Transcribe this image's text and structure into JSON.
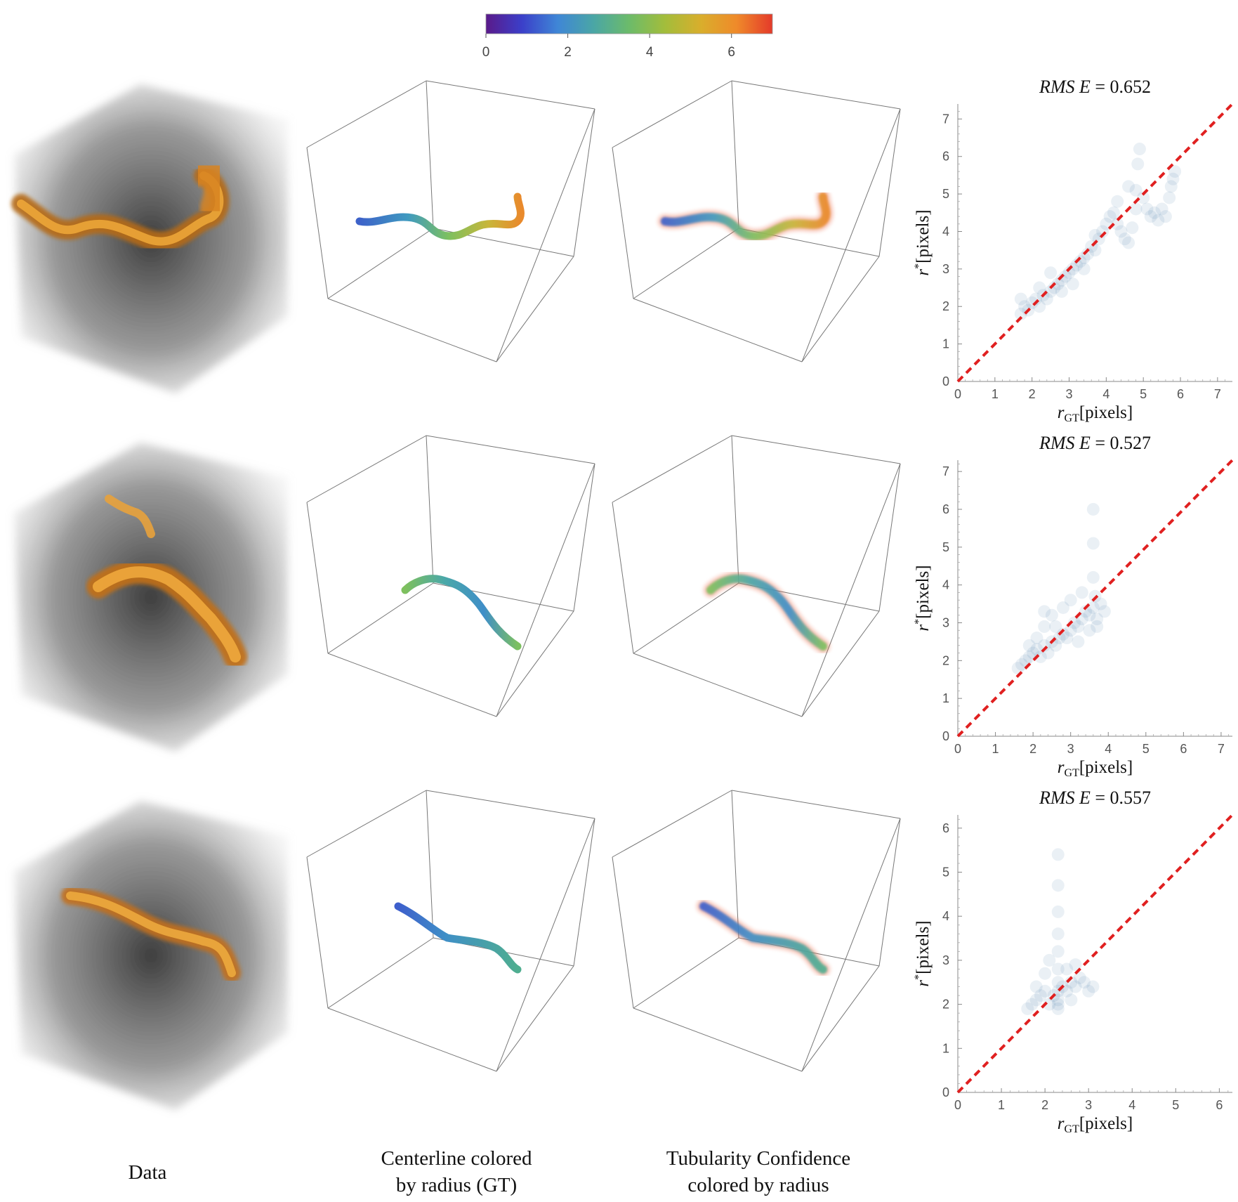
{
  "colorbar": {
    "ticks": [
      "0",
      "2",
      "4",
      "6"
    ],
    "tick_values": [
      0,
      2,
      4,
      6
    ],
    "min": 0,
    "max": 7,
    "colormap": [
      "#5a1a8a",
      "#3b3fc9",
      "#3f86d6",
      "#4aa6a6",
      "#6cbb6a",
      "#a3bd3b",
      "#d9ae2c",
      "#ef8a2a",
      "#e43a2a"
    ]
  },
  "captions": {
    "data": {
      "line1": "Data"
    },
    "centerline": {
      "line1": "Centerline colored",
      "line2": "by radius (GT)"
    },
    "tubularity": {
      "line1": "Tubularity Confidence",
      "line2": "colored by radius"
    }
  },
  "chart_data": [
    {
      "type": "scatter",
      "title_metric": "RMS E",
      "title_eq": "= 0.652",
      "xlabel_main": "r",
      "xlabel_sub": "GT",
      "xlabel_unit": "[pixels]",
      "ylabel_main": "r",
      "ylabel_sup": "*",
      "ylabel_unit": "[pixels]",
      "xlim": [
        0,
        7.4
      ],
      "ylim": [
        0,
        7.4
      ],
      "xticks": [
        0,
        1,
        2,
        3,
        4,
        5,
        6,
        7
      ],
      "yticks": [
        0,
        1,
        2,
        3,
        4,
        5,
        6,
        7
      ],
      "reference_line": "y = x",
      "point_color": "#4f86ab",
      "points": [
        [
          1.7,
          1.8
        ],
        [
          1.8,
          2.0
        ],
        [
          1.9,
          1.9
        ],
        [
          2.0,
          2.1
        ],
        [
          2.1,
          2.2
        ],
        [
          2.2,
          2.0
        ],
        [
          2.3,
          2.3
        ],
        [
          2.4,
          2.2
        ],
        [
          2.5,
          2.4
        ],
        [
          2.6,
          2.5
        ],
        [
          2.7,
          2.6
        ],
        [
          2.8,
          2.7
        ],
        [
          2.9,
          2.8
        ],
        [
          3.0,
          2.9
        ],
        [
          3.1,
          3.0
        ],
        [
          3.2,
          3.1
        ],
        [
          3.3,
          3.2
        ],
        [
          3.4,
          3.3
        ],
        [
          3.5,
          3.4
        ],
        [
          3.6,
          3.6
        ],
        [
          3.7,
          3.5
        ],
        [
          3.8,
          3.8
        ],
        [
          3.9,
          4.0
        ],
        [
          4.0,
          4.2
        ],
        [
          4.1,
          4.4
        ],
        [
          4.2,
          4.5
        ],
        [
          4.3,
          4.2
        ],
        [
          4.4,
          4.0
        ],
        [
          4.5,
          3.8
        ],
        [
          4.6,
          3.7
        ],
        [
          4.7,
          4.1
        ],
        [
          4.8,
          4.6
        ],
        [
          4.85,
          5.8
        ],
        [
          4.9,
          6.2
        ],
        [
          5.0,
          4.9
        ],
        [
          5.1,
          4.6
        ],
        [
          5.2,
          4.4
        ],
        [
          5.3,
          4.5
        ],
        [
          5.4,
          4.3
        ],
        [
          5.5,
          4.6
        ],
        [
          5.6,
          4.4
        ],
        [
          5.7,
          4.9
        ],
        [
          5.75,
          5.2
        ],
        [
          5.8,
          5.4
        ],
        [
          5.85,
          5.6
        ],
        [
          2.2,
          2.5
        ],
        [
          2.5,
          2.9
        ],
        [
          2.8,
          2.4
        ],
        [
          3.1,
          2.6
        ],
        [
          3.4,
          3.0
        ],
        [
          1.7,
          2.2
        ],
        [
          3.7,
          3.9
        ],
        [
          4.3,
          4.8
        ],
        [
          4.6,
          5.2
        ],
        [
          4.8,
          5.1
        ]
      ]
    },
    {
      "type": "scatter",
      "title_metric": "RMS E",
      "title_eq": "= 0.527",
      "xlabel_main": "r",
      "xlabel_sub": "GT",
      "xlabel_unit": "[pixels]",
      "ylabel_main": "r",
      "ylabel_sup": "*",
      "ylabel_unit": "[pixels]",
      "xlim": [
        0,
        7.3
      ],
      "ylim": [
        0,
        7.3
      ],
      "xticks": [
        0,
        1,
        2,
        3,
        4,
        5,
        6,
        7
      ],
      "yticks": [
        0,
        1,
        2,
        3,
        4,
        5,
        6,
        7
      ],
      "reference_line": "y = x",
      "point_color": "#4f86ab",
      "points": [
        [
          1.6,
          1.8
        ],
        [
          1.7,
          1.9
        ],
        [
          1.8,
          2.0
        ],
        [
          1.9,
          2.1
        ],
        [
          2.0,
          2.2
        ],
        [
          2.1,
          2.3
        ],
        [
          2.2,
          2.1
        ],
        [
          2.3,
          2.4
        ],
        [
          2.3,
          2.9
        ],
        [
          2.3,
          3.3
        ],
        [
          2.4,
          2.2
        ],
        [
          2.5,
          2.5
        ],
        [
          2.6,
          2.4
        ],
        [
          2.7,
          2.6
        ],
        [
          2.8,
          2.7
        ],
        [
          2.9,
          2.6
        ],
        [
          3.0,
          2.8
        ],
        [
          3.1,
          3.0
        ],
        [
          3.2,
          2.9
        ],
        [
          3.3,
          3.1
        ],
        [
          3.4,
          3.3
        ],
        [
          3.5,
          3.2
        ],
        [
          3.6,
          3.4
        ],
        [
          3.65,
          3.7
        ],
        [
          3.7,
          2.9
        ],
        [
          3.7,
          3.1
        ],
        [
          3.8,
          3.5
        ],
        [
          3.6,
          4.2
        ],
        [
          3.6,
          5.1
        ],
        [
          3.6,
          6.0
        ],
        [
          2.5,
          3.2
        ],
        [
          2.8,
          3.4
        ],
        [
          3.0,
          3.6
        ],
        [
          3.3,
          3.8
        ],
        [
          2.1,
          2.6
        ],
        [
          1.9,
          2.4
        ],
        [
          3.5,
          2.8
        ],
        [
          3.9,
          3.3
        ],
        [
          3.2,
          2.5
        ],
        [
          2.6,
          2.9
        ]
      ]
    },
    {
      "type": "scatter",
      "title_metric": "RMS E",
      "title_eq": "= 0.557",
      "xlabel_main": "r",
      "xlabel_sub": "GT",
      "xlabel_unit": "[pixels]",
      "ylabel_main": "r",
      "ylabel_sup": "*",
      "ylabel_unit": "[pixels]",
      "xlim": [
        0,
        6.3
      ],
      "ylim": [
        0,
        6.3
      ],
      "xticks": [
        0,
        1,
        2,
        3,
        4,
        5,
        6
      ],
      "yticks": [
        0,
        1,
        2,
        3,
        4,
        5,
        6
      ],
      "reference_line": "y = x",
      "point_color": "#4f86ab",
      "points": [
        [
          1.6,
          1.9
        ],
        [
          1.7,
          2.0
        ],
        [
          1.8,
          2.1
        ],
        [
          1.9,
          2.2
        ],
        [
          2.0,
          2.3
        ],
        [
          2.1,
          2.0
        ],
        [
          2.2,
          2.2
        ],
        [
          2.3,
          1.9
        ],
        [
          2.3,
          2.0
        ],
        [
          2.3,
          2.1
        ],
        [
          2.3,
          2.3
        ],
        [
          2.3,
          2.5
        ],
        [
          2.3,
          2.8
        ],
        [
          2.3,
          3.2
        ],
        [
          2.3,
          3.6
        ],
        [
          2.3,
          4.1
        ],
        [
          2.3,
          4.7
        ],
        [
          2.3,
          5.4
        ],
        [
          2.4,
          2.4
        ],
        [
          2.5,
          2.3
        ],
        [
          2.6,
          2.5
        ],
        [
          2.7,
          2.4
        ],
        [
          2.8,
          2.6
        ],
        [
          2.9,
          2.5
        ],
        [
          3.0,
          2.3
        ],
        [
          3.1,
          2.4
        ],
        [
          1.8,
          2.4
        ],
        [
          2.0,
          2.7
        ],
        [
          2.1,
          3.0
        ],
        [
          2.5,
          2.8
        ],
        [
          2.6,
          2.1
        ],
        [
          2.7,
          2.9
        ]
      ]
    }
  ]
}
